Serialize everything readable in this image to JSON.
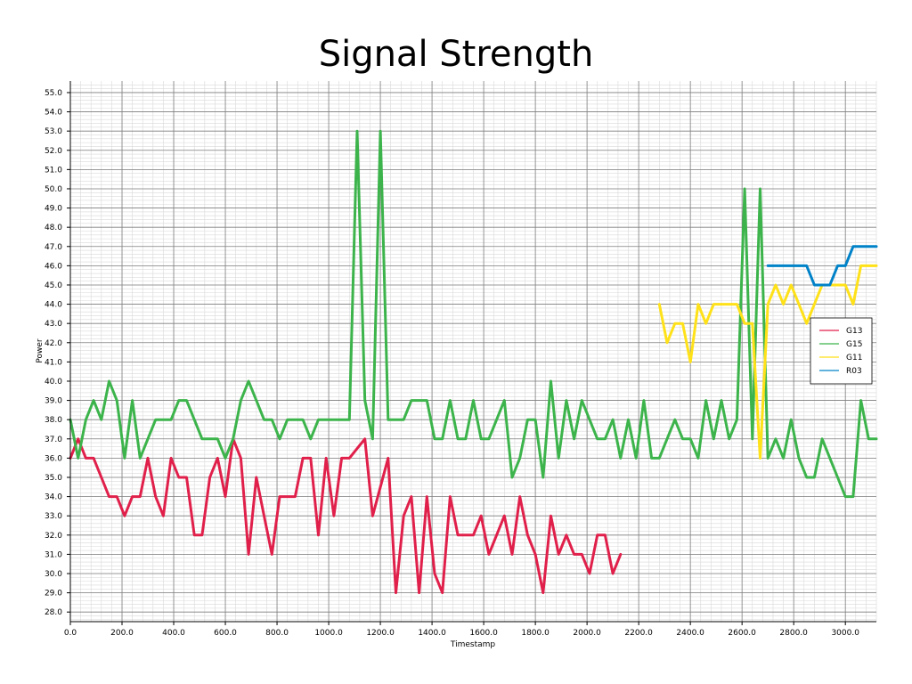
{
  "chart_data": {
    "type": "line",
    "title": "Signal Strength",
    "xlabel": "Timestamp",
    "ylabel": "Power",
    "xlim": [
      0,
      3120
    ],
    "ylim": [
      27.5,
      55.6
    ],
    "x_ticks": [
      0,
      200,
      400,
      600,
      800,
      1000,
      1200,
      1400,
      1600,
      1800,
      2000,
      2200,
      2400,
      2600,
      2800,
      3000
    ],
    "y_ticks": [
      28,
      29,
      30,
      31,
      32,
      33,
      34,
      35,
      36,
      37,
      38,
      39,
      40,
      41,
      42,
      43,
      44,
      45,
      46,
      47,
      48,
      49,
      50,
      51,
      52,
      53,
      54,
      55
    ],
    "grid": true,
    "legend_position": "center-right",
    "series": [
      {
        "name": "G13",
        "color": "#e0204a",
        "x": [
          0,
          30,
          60,
          90,
          120,
          150,
          180,
          210,
          240,
          270,
          300,
          330,
          360,
          390,
          420,
          450,
          480,
          510,
          540,
          570,
          600,
          630,
          660,
          690,
          720,
          750,
          780,
          810,
          840,
          870,
          900,
          930,
          960,
          990,
          1020,
          1050,
          1080,
          1110,
          1140,
          1170,
          1200,
          1230,
          1260,
          1290,
          1320,
          1350,
          1380,
          1410,
          1440,
          1470,
          1500,
          1530,
          1560,
          1590,
          1620,
          1650,
          1680,
          1710,
          1740,
          1770,
          1800,
          1830,
          1860,
          1890,
          1920,
          1950,
          1980,
          2010,
          2040,
          2070,
          2100,
          2130
        ],
        "y": [
          36,
          37,
          36,
          36,
          35,
          34,
          34,
          33,
          34,
          34,
          36,
          34,
          33,
          36,
          35,
          35,
          32,
          32,
          35,
          36,
          34,
          37,
          36,
          31,
          35,
          33,
          31,
          34,
          34,
          34,
          36,
          36,
          32,
          36,
          33,
          36,
          36,
          36.5,
          37,
          33,
          34.5,
          36,
          29,
          33,
          34,
          29,
          34,
          30,
          29,
          34,
          32,
          32,
          32,
          33,
          31,
          32,
          33,
          31,
          34,
          32,
          31,
          29,
          33,
          31,
          32,
          31,
          31,
          30,
          32,
          32,
          30,
          31
        ]
      },
      {
        "name": "G15",
        "color": "#3cb44b",
        "x": [
          0,
          30,
          60,
          90,
          120,
          150,
          180,
          210,
          240,
          270,
          300,
          330,
          360,
          390,
          420,
          450,
          480,
          510,
          540,
          570,
          600,
          630,
          660,
          690,
          720,
          750,
          780,
          810,
          840,
          870,
          900,
          930,
          960,
          990,
          1020,
          1050,
          1080,
          1110,
          1140,
          1170,
          1200,
          1230,
          1260,
          1290,
          1320,
          1350,
          1380,
          1410,
          1440,
          1470,
          1500,
          1530,
          1560,
          1590,
          1620,
          1650,
          1680,
          1710,
          1740,
          1770,
          1800,
          1830,
          1860,
          1890,
          1920,
          1950,
          1980,
          2010,
          2040,
          2070,
          2100,
          2130,
          2160,
          2190,
          2220,
          2250,
          2280,
          2310,
          2340,
          2370,
          2400,
          2430,
          2460,
          2490,
          2520,
          2550,
          2580,
          2610,
          2640,
          2670,
          2700,
          2730,
          2760,
          2790,
          2820,
          2850,
          2880,
          2910,
          2940,
          2970,
          3000,
          3030,
          3060,
          3090,
          3120
        ],
        "y": [
          38,
          36,
          38,
          39,
          38,
          40,
          39,
          36,
          39,
          36,
          37,
          38,
          38,
          38,
          39,
          39,
          38,
          37,
          37,
          37,
          36,
          37,
          39,
          40,
          39,
          38,
          38,
          37,
          38,
          38,
          38,
          37,
          38,
          38,
          38,
          38,
          38,
          53,
          39,
          37,
          53,
          38,
          38,
          38,
          39,
          39,
          39,
          37,
          37,
          39,
          37,
          37,
          39,
          37,
          37,
          38,
          39,
          35,
          36,
          38,
          38,
          35,
          40,
          36,
          39,
          37,
          39,
          38,
          37,
          37,
          38,
          36,
          38,
          36,
          39,
          36,
          36,
          37,
          38,
          37,
          37,
          36,
          39,
          37,
          39,
          37,
          38,
          50,
          37,
          50,
          36,
          37,
          36,
          38,
          36,
          35,
          35,
          37,
          36,
          35,
          34,
          34,
          39,
          37,
          37
        ]
      },
      {
        "name": "G11",
        "color": "#ffe119",
        "x": [
          2280,
          2310,
          2340,
          2370,
          2400,
          2430,
          2460,
          2490,
          2520,
          2550,
          2580,
          2610,
          2640,
          2670,
          2700,
          2730,
          2760,
          2790,
          2820,
          2850,
          2880,
          2910,
          2940,
          2970,
          3000,
          3030,
          3060,
          3090,
          3120
        ],
        "y": [
          44,
          42,
          43,
          43,
          41,
          44,
          43,
          44,
          44,
          44,
          44,
          43,
          43,
          36,
          44,
          45,
          44,
          45,
          44,
          43,
          44,
          45,
          45,
          45,
          45,
          44,
          46,
          46,
          46
        ]
      },
      {
        "name": "R03",
        "color": "#0082c8",
        "x": [
          2700,
          2730,
          2760,
          2790,
          2820,
          2850,
          2880,
          2910,
          2940,
          2970,
          3000,
          3030,
          3060,
          3090,
          3120
        ],
        "y": [
          46,
          46,
          46,
          46,
          46,
          46,
          45,
          45,
          45,
          46,
          46,
          47,
          47,
          47,
          47
        ]
      }
    ]
  }
}
